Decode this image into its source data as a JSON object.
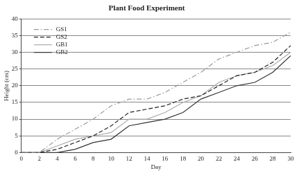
{
  "chart_data": {
    "type": "line",
    "title": "Plant Food Experiment",
    "x_label": "Day",
    "y_label": "Height (cm)",
    "x": [
      0,
      2,
      4,
      6,
      8,
      10,
      12,
      14,
      16,
      18,
      20,
      22,
      24,
      26,
      28,
      30
    ],
    "series": [
      {
        "name": "GS1",
        "color": "#999999",
        "line_style": "dashdot",
        "values": [
          0,
          0,
          4,
          7,
          10,
          14,
          16,
          16,
          18,
          21,
          24,
          28,
          30,
          32,
          33,
          36
        ]
      },
      {
        "name": "GS2",
        "color": "#222222",
        "line_style": "dashed",
        "values": [
          0,
          0,
          1,
          3,
          5,
          8,
          12,
          13,
          14,
          16,
          17,
          20,
          23,
          24,
          27,
          32
        ]
      },
      {
        "name": "GB1",
        "color": "#aaaaaa",
        "line_style": "solid",
        "values": [
          0,
          0,
          2,
          4,
          5,
          6,
          10,
          10,
          12,
          15,
          17,
          21,
          23,
          24,
          26,
          30
        ]
      },
      {
        "name": "GB2",
        "color": "#333333",
        "line_style": "solid",
        "values": [
          0,
          0,
          0,
          1,
          3,
          4,
          8,
          9,
          10,
          12,
          16,
          18,
          20,
          21,
          24,
          29
        ]
      }
    ],
    "xlim": [
      0,
      30
    ],
    "xticks": [
      0,
      2,
      4,
      6,
      8,
      10,
      12,
      14,
      16,
      18,
      20,
      22,
      24,
      26,
      28,
      30
    ],
    "ylim": [
      0,
      40
    ],
    "yticks": [
      0,
      5,
      10,
      15,
      20,
      25,
      30,
      35,
      40
    ],
    "grid": "y",
    "legend": "upper left"
  }
}
